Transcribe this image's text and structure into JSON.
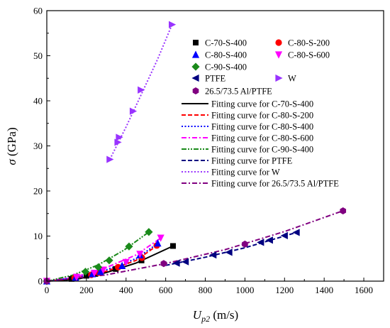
{
  "chart_data": {
    "type": "scatter",
    "xlabel_main": "U",
    "xlabel_sub": "p2",
    "xlabel_unit": " (m/s)",
    "ylabel_main": "σ",
    "ylabel_unit": " (GPa)",
    "xlim": [
      0,
      1700
    ],
    "ylim": [
      0,
      60
    ],
    "xticks": [
      0,
      200,
      400,
      600,
      800,
      1000,
      1200,
      1400,
      1600
    ],
    "yticks": [
      0,
      10,
      20,
      30,
      40,
      50,
      60
    ],
    "legend_position": "top-right",
    "series": [
      {
        "name": "C-70-S-400",
        "marker": "square",
        "color": "#000000",
        "x": [
          0,
          125,
          200,
          245,
          348,
          478,
          637
        ],
        "y": [
          0,
          0.5,
          1.2,
          1.6,
          2.7,
          4.6,
          7.8
        ],
        "fit_name": "Fitting curve for C-70-S-400",
        "fit_style": "solid",
        "fit_x": [
          0,
          150,
          300,
          450,
          637
        ],
        "fit_y": [
          0,
          0.4,
          1.9,
          4.0,
          7.8
        ]
      },
      {
        "name": "C-80-S-200",
        "marker": "circle",
        "color": "#ff0000",
        "x": [
          0,
          140,
          225,
          260,
          360,
          480,
          555
        ],
        "y": [
          0,
          0.7,
          1.4,
          1.9,
          3.1,
          5.2,
          7.9
        ],
        "fit_name": "Fitting curve for C-80-S-200",
        "fit_style": "dash",
        "fit_x": [
          0,
          150,
          300,
          450,
          560
        ],
        "fit_y": [
          0,
          0.7,
          2.2,
          4.6,
          8.0
        ]
      },
      {
        "name": "C-80-S-400",
        "marker": "triangle-up",
        "color": "#0000ff",
        "x": [
          0,
          145,
          230,
          270,
          380,
          470,
          560
        ],
        "y": [
          0,
          0.8,
          1.6,
          2.1,
          3.4,
          5.8,
          8.4
        ],
        "fit_name": "Fitting curve for C-80-S-400",
        "fit_style": "dot",
        "fit_x": [
          0,
          150,
          300,
          450,
          565
        ],
        "fit_y": [
          0,
          0.8,
          2.5,
          5.0,
          8.5
        ]
      },
      {
        "name": "C-80-S-600",
        "marker": "triangle-down",
        "color": "#ff00ff",
        "x": [
          0,
          150,
          240,
          285,
          400,
          470,
          575
        ],
        "y": [
          0,
          0.9,
          1.8,
          2.5,
          4.2,
          6.0,
          9.6
        ],
        "fit_name": "Fitting curve for C-80-S-600",
        "fit_style": "dashdot",
        "fit_x": [
          0,
          150,
          300,
          450,
          580
        ],
        "fit_y": [
          0,
          1.0,
          3.0,
          5.8,
          9.7
        ]
      },
      {
        "name": "C-90-S-400",
        "marker": "diamond",
        "color": "#1a8a1a",
        "x": [
          0,
          195,
          260,
          315,
          415,
          515
        ],
        "y": [
          0,
          2.1,
          3.1,
          4.6,
          7.7,
          10.9
        ],
        "fit_name": "Fitting curve for C-90-S-400",
        "fit_style": "dashdotdot",
        "fit_x": [
          0,
          130,
          260,
          390,
          515
        ],
        "fit_y": [
          0,
          1.3,
          3.6,
          6.9,
          10.9
        ]
      },
      {
        "name": "PTFE",
        "marker": "triangle-left",
        "color": "#000080",
        "x": [
          655,
          700,
          840,
          920,
          1080,
          1125,
          1200,
          1260
        ],
        "y": [
          4.0,
          4.3,
          5.8,
          6.4,
          8.6,
          9.1,
          10.1,
          10.8
        ],
        "fit_name": "Fitting curve for PTFE",
        "fit_style": "dash",
        "fit_x": [
          600,
          800,
          1000,
          1260
        ],
        "fit_y": [
          3.5,
          5.3,
          7.4,
          10.8
        ]
      },
      {
        "name": "W",
        "marker": "triangle-right",
        "color": "#9933ff",
        "x": [
          318,
          358,
          365,
          435,
          475,
          632
        ],
        "y": [
          27.0,
          30.8,
          31.9,
          37.7,
          42.4,
          56.9
        ],
        "fit_name": "Fitting curve for W",
        "fit_style": "dot",
        "fit_x": [
          318,
          400,
          480,
          560,
          632
        ],
        "fit_y": [
          27.0,
          34.2,
          41.7,
          49.3,
          56.9
        ]
      },
      {
        "name": "26.5/73.5 Al/PTFE",
        "marker": "hexagon",
        "color": "#800080",
        "x": [
          0,
          590,
          1000,
          1495
        ],
        "y": [
          0,
          3.9,
          8.2,
          15.6
        ],
        "fit_name": "Fitting curve for 26.5/73.5 Al/PTFE",
        "fit_style": "dashdot",
        "fit_x": [
          0,
          300,
          600,
          900,
          1200,
          1495
        ],
        "fit_y": [
          0,
          1.4,
          3.9,
          7.0,
          11.0,
          15.6
        ]
      }
    ]
  }
}
